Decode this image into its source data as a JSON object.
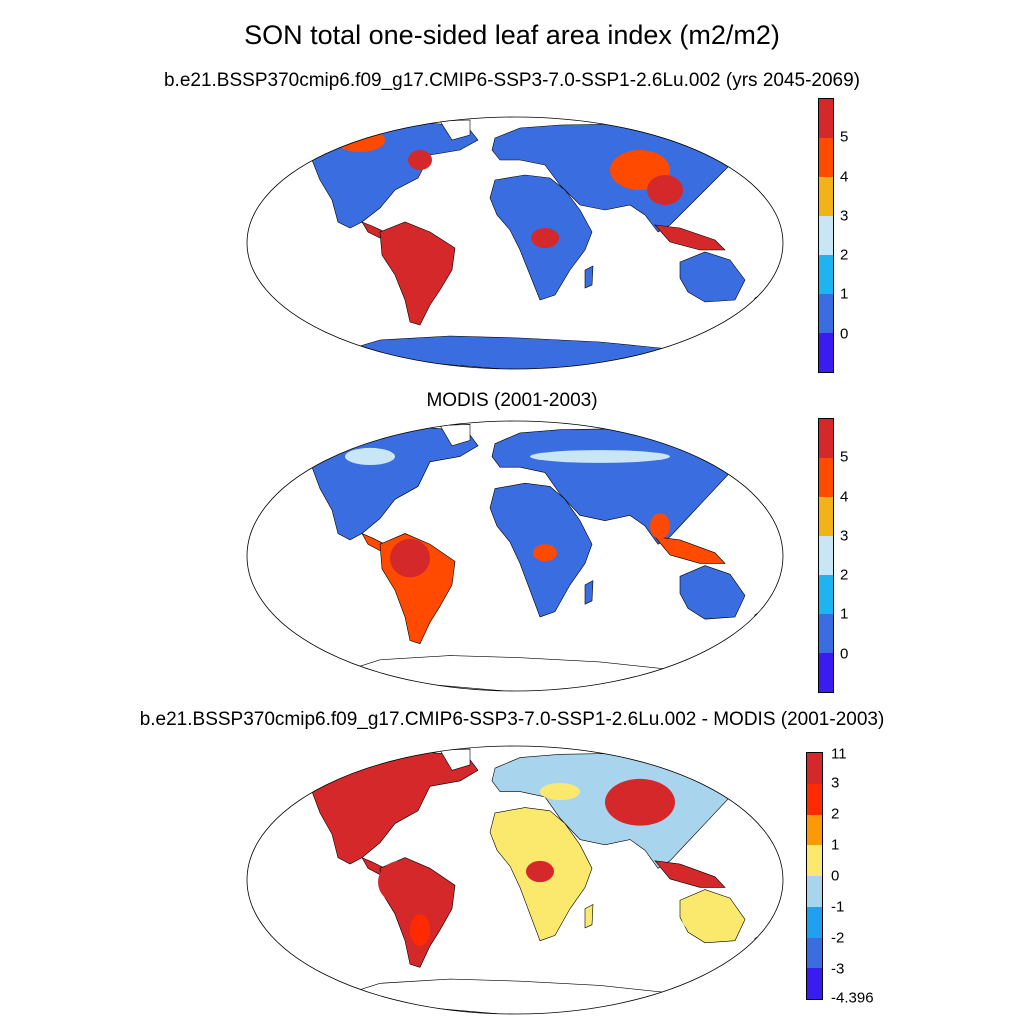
{
  "figure": {
    "title": "SON total one-sided leaf area index (m2/m2)"
  },
  "panels": [
    {
      "id": "model",
      "title": "b.e21.BSSP370cmip6.f09_g17.CMIP6-SSP3-7.0-SSP1-2.6Lu.002 (yrs 2045-2069)",
      "colorbar": {
        "labels": [
          "0",
          "1",
          "2",
          "3",
          "4",
          "5"
        ],
        "colors": [
          "#3b1cf0",
          "#3a6ee0",
          "#1fb3f0",
          "#c8e6f5",
          "#f2b21a",
          "#ff4a00",
          "#d4282a"
        ]
      }
    },
    {
      "id": "obs",
      "title": "MODIS (2001-2003)",
      "colorbar": {
        "labels": [
          "0",
          "1",
          "2",
          "3",
          "4",
          "5"
        ],
        "colors": [
          "#3b1cf0",
          "#3a6ee0",
          "#1fb3f0",
          "#c8e6f5",
          "#f2b21a",
          "#ff4a00",
          "#d4282a"
        ]
      }
    },
    {
      "id": "diff",
      "title": "b.e21.BSSP370cmip6.f09_g17.CMIP6-SSP3-7.0-SSP1-2.6Lu.002 - MODIS (2001-2003)",
      "colorbar": {
        "labels": [
          "-4.396",
          "-3",
          "-2",
          "-1",
          "0",
          "1",
          "2",
          "3",
          "11"
        ],
        "colors": [
          "#3b1cf0",
          "#3a6ee0",
          "#1fa0f0",
          "#a8d4ee",
          "#fbe96e",
          "#fb9a06",
          "#ff2a00",
          "#d4282a"
        ]
      }
    }
  ]
}
